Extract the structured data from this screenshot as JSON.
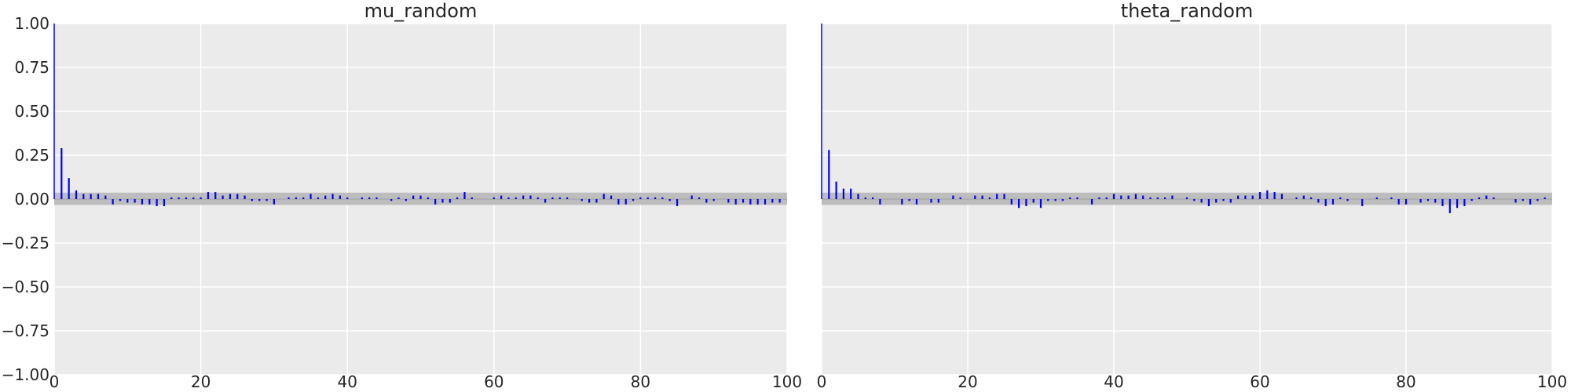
{
  "chart_data": [
    {
      "type": "bar",
      "title": "mu_random",
      "xlabel": "",
      "ylabel": "",
      "xlim": [
        0,
        100
      ],
      "ylim": [
        -1.0,
        1.0
      ],
      "xticks": [
        0,
        20,
        40,
        60,
        80,
        100
      ],
      "yticks": [
        1.0,
        0.75,
        0.5,
        0.25,
        0.0,
        -0.25,
        -0.5,
        -0.75,
        -1.0
      ],
      "xtick_labels": [
        "0",
        "20",
        "40",
        "60",
        "80",
        "100"
      ],
      "ytick_labels": [
        "1.00",
        "0.75",
        "0.50",
        "0.25",
        "0.00",
        "−0.25",
        "−0.50",
        "−0.75",
        "−1.00"
      ],
      "grid": true,
      "band": [
        -0.033,
        0.037
      ],
      "lags": [
        0,
        1,
        2,
        3,
        4,
        5,
        6,
        7,
        8,
        9,
        10,
        11,
        12,
        13,
        14,
        15,
        16,
        17,
        18,
        19,
        20,
        21,
        22,
        23,
        24,
        25,
        26,
        27,
        28,
        29,
        30,
        31,
        32,
        33,
        34,
        35,
        36,
        37,
        38,
        39,
        40,
        41,
        42,
        43,
        44,
        45,
        46,
        47,
        48,
        49,
        50,
        51,
        52,
        53,
        54,
        55,
        56,
        57,
        58,
        59,
        60,
        61,
        62,
        63,
        64,
        65,
        66,
        67,
        68,
        69,
        70,
        71,
        72,
        73,
        74,
        75,
        76,
        77,
        78,
        79,
        80,
        81,
        82,
        83,
        84,
        85,
        86,
        87,
        88,
        89,
        90,
        91,
        92,
        93,
        94,
        95,
        96,
        97,
        98,
        99
      ],
      "values": [
        1.0,
        0.29,
        0.12,
        0.05,
        0.03,
        0.03,
        0.03,
        0.02,
        -0.03,
        -0.01,
        -0.02,
        -0.02,
        -0.03,
        -0.03,
        -0.04,
        -0.04,
        0.01,
        0.01,
        0.01,
        0.01,
        0.01,
        0.04,
        0.04,
        0.02,
        0.03,
        0.03,
        0.02,
        -0.01,
        -0.01,
        -0.01,
        -0.03,
        0.0,
        0.01,
        0.01,
        0.01,
        0.03,
        0.01,
        0.02,
        0.03,
        0.02,
        0.01,
        0.0,
        0.01,
        0.01,
        0.01,
        0.0,
        -0.01,
        0.01,
        -0.01,
        0.02,
        0.02,
        0.01,
        -0.03,
        -0.02,
        -0.02,
        0.01,
        0.04,
        0.01,
        0.0,
        0.0,
        0.01,
        0.02,
        0.01,
        0.01,
        0.02,
        0.02,
        0.01,
        -0.02,
        0.01,
        0.01,
        0.01,
        0.0,
        -0.01,
        -0.02,
        -0.02,
        0.03,
        0.02,
        -0.03,
        -0.03,
        -0.01,
        0.01,
        0.01,
        0.01,
        0.01,
        -0.01,
        -0.04,
        0.0,
        0.02,
        0.01,
        -0.02,
        -0.01,
        0.0,
        -0.02,
        -0.03,
        -0.02,
        -0.03,
        -0.03,
        -0.03,
        -0.02,
        -0.02
      ]
    },
    {
      "type": "bar",
      "title": "theta_random",
      "xlabel": "",
      "ylabel": "",
      "xlim": [
        0,
        100
      ],
      "ylim": [
        -1.0,
        1.0
      ],
      "xticks": [
        0,
        20,
        40,
        60,
        80,
        100
      ],
      "xtick_labels": [
        "0",
        "20",
        "40",
        "60",
        "80",
        "100"
      ],
      "grid": true,
      "band": [
        -0.033,
        0.037
      ],
      "lags": [
        0,
        1,
        2,
        3,
        4,
        5,
        6,
        7,
        8,
        9,
        10,
        11,
        12,
        13,
        14,
        15,
        16,
        17,
        18,
        19,
        20,
        21,
        22,
        23,
        24,
        25,
        26,
        27,
        28,
        29,
        30,
        31,
        32,
        33,
        34,
        35,
        36,
        37,
        38,
        39,
        40,
        41,
        42,
        43,
        44,
        45,
        46,
        47,
        48,
        49,
        50,
        51,
        52,
        53,
        54,
        55,
        56,
        57,
        58,
        59,
        60,
        61,
        62,
        63,
        64,
        65,
        66,
        67,
        68,
        69,
        70,
        71,
        72,
        73,
        74,
        75,
        76,
        77,
        78,
        79,
        80,
        81,
        82,
        83,
        84,
        85,
        86,
        87,
        88,
        89,
        90,
        91,
        92,
        93,
        94,
        95,
        96,
        97,
        98,
        99
      ],
      "values": [
        1.0,
        0.28,
        0.1,
        0.06,
        0.06,
        0.03,
        0.01,
        0.01,
        -0.03,
        0.0,
        0.0,
        -0.03,
        -0.01,
        -0.03,
        0.0,
        -0.02,
        -0.02,
        0.0,
        0.02,
        0.01,
        0.0,
        0.02,
        0.02,
        0.01,
        0.03,
        0.03,
        -0.03,
        -0.05,
        -0.04,
        -0.02,
        -0.05,
        -0.01,
        -0.01,
        -0.01,
        0.01,
        0.01,
        0.0,
        -0.03,
        0.01,
        0.01,
        0.03,
        0.02,
        0.02,
        0.03,
        0.02,
        0.01,
        0.01,
        0.01,
        0.02,
        0.0,
        0.01,
        -0.01,
        -0.02,
        -0.04,
        -0.02,
        -0.01,
        -0.02,
        0.02,
        0.02,
        0.02,
        0.04,
        0.05,
        0.04,
        0.03,
        0.0,
        0.01,
        0.02,
        0.01,
        -0.02,
        -0.04,
        -0.03,
        0.01,
        -0.01,
        0.0,
        -0.04,
        0.0,
        0.01,
        0.0,
        0.01,
        -0.03,
        -0.03,
        0.0,
        -0.02,
        -0.01,
        -0.02,
        -0.04,
        -0.08,
        -0.05,
        -0.04,
        -0.01,
        0.01,
        0.02,
        0.01,
        0.0,
        0.0,
        -0.02,
        -0.01,
        -0.03,
        -0.01,
        0.01
      ]
    }
  ]
}
